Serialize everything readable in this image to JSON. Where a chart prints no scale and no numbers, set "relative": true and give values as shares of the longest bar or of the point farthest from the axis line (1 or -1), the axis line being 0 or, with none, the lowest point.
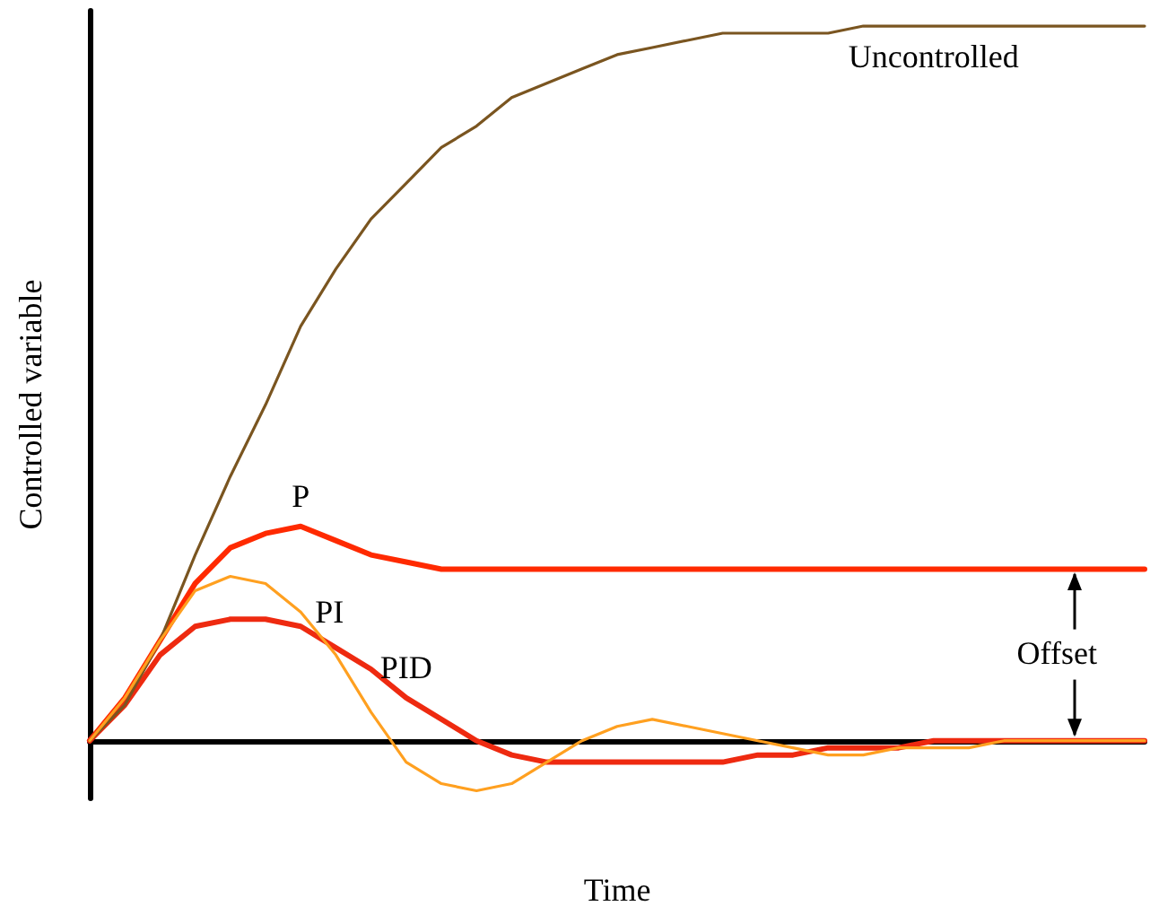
{
  "chart_data": {
    "type": "line",
    "xlabel": "Time",
    "ylabel": "Controlled variable",
    "relative": true,
    "marker": "none",
    "annotations": [
      "Offset"
    ],
    "categories": [
      null,
      null,
      null,
      null,
      null,
      null,
      null,
      null,
      null,
      null,
      null,
      null,
      null,
      null,
      null,
      null,
      null,
      null,
      null,
      null,
      null,
      null,
      null,
      null,
      null,
      null,
      null,
      null,
      null,
      null,
      null
    ],
    "series": [
      {
        "name": "Uncontrolled",
        "color": "#7a5520",
        "values": [
          0,
          0.05,
          0.14,
          0.26,
          0.37,
          0.47,
          0.58,
          0.66,
          0.73,
          0.78,
          0.83,
          0.86,
          0.9,
          0.92,
          0.94,
          0.96,
          0.97,
          0.98,
          0.99,
          0.99,
          0.99,
          0.99,
          1,
          1,
          1,
          1,
          1,
          1,
          1,
          1,
          1
        ]
      },
      {
        "name": "P",
        "color": "#ff2a00",
        "values": [
          0,
          0.06,
          0.14,
          0.22,
          0.27,
          0.29,
          0.3,
          0.28,
          0.26,
          0.25,
          0.24,
          0.24,
          0.24,
          0.24,
          0.24,
          0.24,
          0.24,
          0.24,
          0.24,
          0.24,
          0.24,
          0.24,
          0.24,
          0.24,
          0.24,
          0.24,
          0.24,
          0.24,
          0.24,
          0.24,
          0.24
        ]
      },
      {
        "name": "PI",
        "color": "#ffa020",
        "values": [
          0,
          0.06,
          0.14,
          0.21,
          0.23,
          0.22,
          0.18,
          0.12,
          0.04,
          -0.03,
          -0.06,
          -0.07,
          -0.06,
          -0.03,
          0,
          0.02,
          0.03,
          0.02,
          0.01,
          0,
          -0.01,
          -0.02,
          -0.02,
          -0.01,
          -0.01,
          -0.01,
          0,
          0,
          0,
          0,
          0
        ]
      },
      {
        "name": "PID",
        "color": "#ee2a10",
        "values": [
          0,
          0.05,
          0.12,
          0.16,
          0.17,
          0.17,
          0.16,
          0.13,
          0.1,
          0.06,
          0.03,
          0,
          -0.02,
          -0.03,
          -0.03,
          -0.03,
          -0.03,
          -0.03,
          -0.03,
          -0.02,
          -0.02,
          -0.01,
          -0.01,
          -0.01,
          0,
          0,
          0,
          0,
          0,
          0,
          0
        ]
      }
    ]
  }
}
